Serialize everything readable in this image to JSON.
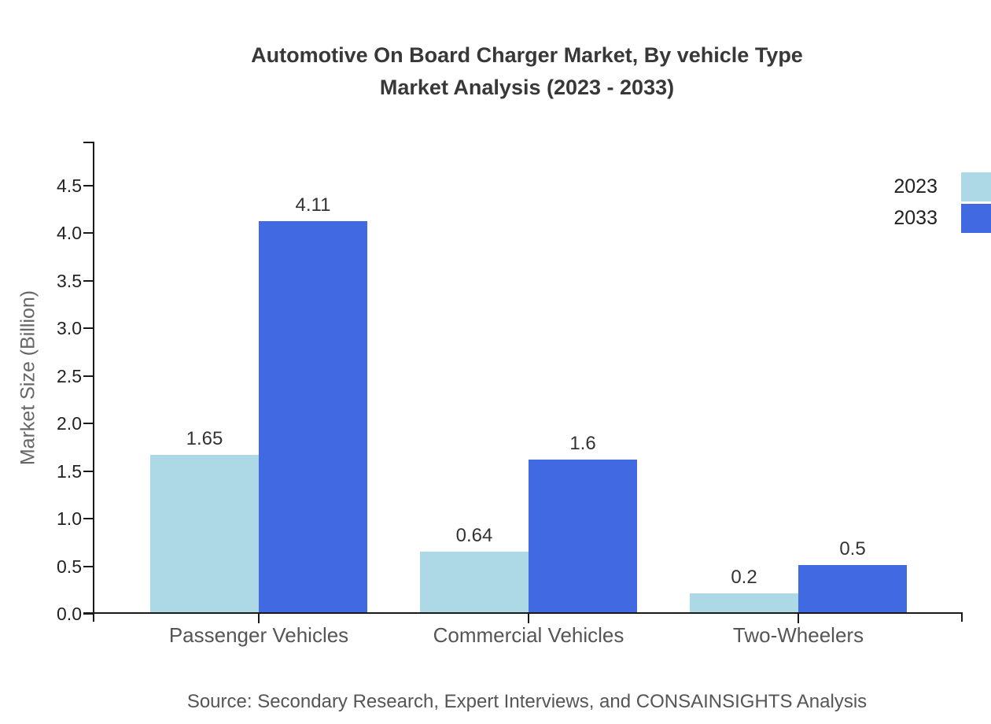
{
  "title": {
    "line1": "Automotive On Board Charger Market, By vehicle Type",
    "line2": "Market Analysis (2023 - 2033)"
  },
  "source": "Source: Secondary Research, Expert Interviews, and CONSAINSIGHTS Analysis",
  "colors": {
    "series_2023": "#ADD8E6",
    "series_2033": "#4169E1",
    "axis": "#1a1a1a",
    "title_text": "#383838",
    "muted_text": "#555555"
  },
  "chart_data": {
    "type": "bar",
    "title": "Automotive On Board Charger Market, By vehicle Type Market Analysis (2023 - 2033)",
    "categories": [
      "Passenger Vehicles",
      "Commercial Vehicles",
      "Two-Wheelers"
    ],
    "series": [
      {
        "name": "2023",
        "color": "#ADD8E6",
        "values": [
          1.65,
          0.64,
          0.2
        ]
      },
      {
        "name": "2033",
        "color": "#4169E1",
        "values": [
          4.11,
          1.6,
          0.5
        ]
      }
    ],
    "xlabel": "",
    "ylabel": "Market Size (Billion)",
    "ylim": [
      0,
      4.5
    ],
    "yticks": [
      0,
      0.5,
      1,
      1.5,
      2,
      2.5,
      3,
      3.5,
      4,
      4.5
    ],
    "grid": false,
    "legend_position": "top-right",
    "value_labels_shown": true
  },
  "legend": {
    "items": [
      {
        "label": "2023",
        "color": "#ADD8E6"
      },
      {
        "label": "2033",
        "color": "#4169E1"
      }
    ]
  }
}
